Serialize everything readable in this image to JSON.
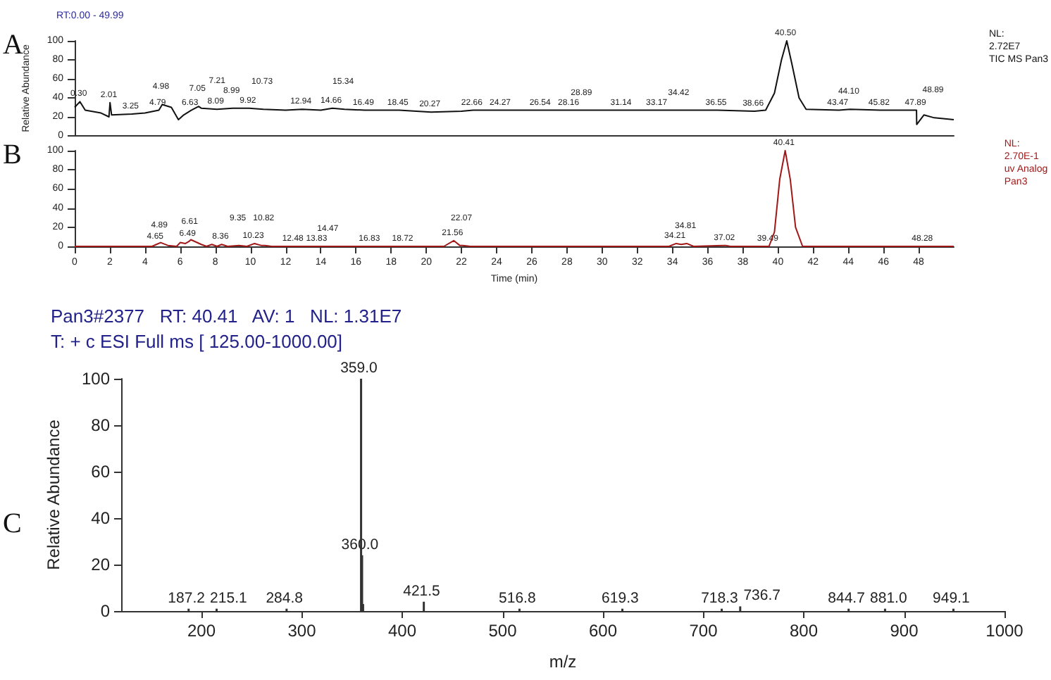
{
  "chart_data": [
    {
      "type": "line",
      "ylabel": "Relative Abundance",
      "xlim": [
        0,
        50
      ],
      "ylim": [
        0,
        100
      ],
      "yticks": [
        0,
        20,
        40,
        60,
        80,
        100
      ],
      "tick_labels": "y",
      "grid": false,
      "marker": "none",
      "line_style": "solid",
      "annotations": [
        "A",
        "RT:0.00 - 49.99",
        {
          "text": "0.30",
          "x": 0.3,
          "y": 36
        },
        {
          "text": "2.01",
          "x": 2.01,
          "y": 35
        },
        {
          "text": "3.25",
          "x": 3.25,
          "y": 23
        },
        {
          "text": "4.79",
          "x": 4.79,
          "y": 27
        },
        {
          "text": "4.98",
          "x": 4.98,
          "y": 33
        },
        {
          "text": "6.63",
          "x": 6.63,
          "y": 27
        },
        {
          "text": "7.05",
          "x": 7.05,
          "y": 31
        },
        {
          "text": "7.21",
          "x": 7.21,
          "y": 29
        },
        {
          "text": "8.09",
          "x": 8.09,
          "y": 28
        },
        {
          "text": "8.99",
          "x": 8.99,
          "y": 29
        },
        {
          "text": "9.92",
          "x": 9.92,
          "y": 29
        },
        {
          "text": "10.73",
          "x": 10.73,
          "y": 28
        },
        {
          "text": "12.94",
          "x": 12.94,
          "y": 28
        },
        {
          "text": "14.66",
          "x": 14.66,
          "y": 29
        },
        {
          "text": "15.34",
          "x": 15.34,
          "y": 28
        },
        {
          "text": "16.49",
          "x": 16.49,
          "y": 27
        },
        {
          "text": "18.45",
          "x": 18.45,
          "y": 27
        },
        {
          "text": "20.27",
          "x": 20.27,
          "y": 25
        },
        {
          "text": "22.66",
          "x": 22.66,
          "y": 27
        },
        {
          "text": "24.27",
          "x": 24.27,
          "y": 27
        },
        {
          "text": "26.54",
          "x": 26.54,
          "y": 27
        },
        {
          "text": "28.16",
          "x": 28.16,
          "y": 27
        },
        {
          "text": "28.89",
          "x": 28.89,
          "y": 27
        },
        {
          "text": "31.14",
          "x": 31.14,
          "y": 27
        },
        {
          "text": "33.17",
          "x": 33.17,
          "y": 27
        },
        {
          "text": "34.42",
          "x": 34.42,
          "y": 27
        },
        {
          "text": "36.55",
          "x": 36.55,
          "y": 27
        },
        {
          "text": "38.66",
          "x": 38.66,
          "y": 26
        },
        {
          "text": "40.50",
          "x": 40.5,
          "y": 100
        },
        {
          "text": "43.47",
          "x": 43.47,
          "y": 27
        },
        {
          "text": "44.10",
          "x": 44.1,
          "y": 28
        },
        {
          "text": "45.82",
          "x": 45.82,
          "y": 27
        },
        {
          "text": "47.89",
          "x": 47.89,
          "y": 27
        },
        {
          "text": "48.89",
          "x": 48.89,
          "y": 19
        },
        "NL:\n2.72E7\nTIC MS Pan3"
      ],
      "series": [
        {
          "color": "#111111",
          "x": [
            0,
            0.3,
            0.6,
            1.5,
            1.95,
            2.01,
            2.1,
            3.25,
            4.0,
            4.79,
            4.98,
            5.5,
            5.9,
            6.2,
            6.63,
            7.05,
            7.21,
            8.09,
            8.99,
            9.92,
            10.73,
            12.0,
            12.94,
            14.0,
            14.66,
            15.34,
            16.49,
            18.45,
            20.27,
            22.0,
            22.66,
            24.27,
            26.54,
            28.16,
            28.89,
            31.14,
            33.17,
            34.42,
            36.55,
            38.66,
            39.3,
            39.8,
            40.2,
            40.5,
            40.8,
            41.2,
            41.6,
            43.47,
            44.1,
            45.82,
            47.5,
            47.88,
            47.89,
            48.3,
            48.89,
            49.5,
            50
          ],
          "values": [
            30,
            36,
            27,
            24,
            20,
            35,
            22,
            23,
            24,
            27,
            33,
            30,
            17,
            22,
            27,
            31,
            29,
            28,
            29,
            29,
            28,
            27,
            28,
            27,
            29,
            28,
            27,
            27,
            25,
            26,
            27,
            27,
            27,
            27,
            27,
            27,
            27,
            27,
            27,
            26,
            27,
            45,
            80,
            100,
            75,
            40,
            28,
            27,
            28,
            27,
            27,
            27,
            12,
            22,
            19,
            18,
            17
          ]
        }
      ]
    },
    {
      "type": "line",
      "xlabel": "Time (min)",
      "xlim": [
        0,
        50
      ],
      "ylim": [
        0,
        100
      ],
      "xticks": [
        0,
        2,
        4,
        6,
        8,
        10,
        12,
        14,
        16,
        18,
        20,
        22,
        24,
        26,
        28,
        30,
        32,
        34,
        36,
        38,
        40,
        42,
        44,
        46,
        48
      ],
      "yticks": [
        0,
        20,
        40,
        60,
        80,
        100
      ],
      "grid": false,
      "marker": "none",
      "line_style": "solid",
      "annotations": [
        "B",
        {
          "text": "4.65",
          "x": 4.65,
          "y": 2
        },
        {
          "text": "4.89",
          "x": 4.89,
          "y": 4
        },
        {
          "text": "6.49",
          "x": 6.49,
          "y": 5
        },
        {
          "text": "6.61",
          "x": 6.61,
          "y": 7
        },
        {
          "text": "8.36",
          "x": 8.36,
          "y": 2
        },
        {
          "text": "9.35",
          "x": 9.35,
          "y": 1
        },
        {
          "text": "10.23",
          "x": 10.23,
          "y": 3
        },
        {
          "text": "10.82",
          "x": 10.82,
          "y": 1
        },
        {
          "text": "12.48",
          "x": 12.48,
          "y": 0
        },
        {
          "text": "13.83",
          "x": 13.83,
          "y": 0
        },
        {
          "text": "14.47",
          "x": 14.47,
          "y": 0
        },
        {
          "text": "16.83",
          "x": 16.83,
          "y": 0
        },
        {
          "text": "18.72",
          "x": 18.72,
          "y": 0
        },
        {
          "text": "21.56",
          "x": 21.56,
          "y": 6
        },
        {
          "text": "22.07",
          "x": 22.07,
          "y": 1
        },
        {
          "text": "34.21",
          "x": 34.21,
          "y": 3
        },
        {
          "text": "34.81",
          "x": 34.81,
          "y": 3
        },
        {
          "text": "37.02",
          "x": 37.02,
          "y": 1
        },
        {
          "text": "39.49",
          "x": 39.49,
          "y": 0
        },
        {
          "text": "40.41",
          "x": 40.41,
          "y": 100
        },
        {
          "text": "48.28",
          "x": 48.28,
          "y": 0
        },
        "NL:\n2.70E-1\nuv Analog\nPan3"
      ],
      "series": [
        {
          "color": "#a01818",
          "x": [
            0,
            4.4,
            4.65,
            4.89,
            5.3,
            5.8,
            6.0,
            6.3,
            6.49,
            6.61,
            7.2,
            7.5,
            7.8,
            8.1,
            8.36,
            8.7,
            9.35,
            9.8,
            10.23,
            10.6,
            10.82,
            11.2,
            12.48,
            13.83,
            14.47,
            16.83,
            18.72,
            21.0,
            21.56,
            21.9,
            22.07,
            22.5,
            33.8,
            34.21,
            34.5,
            34.81,
            35.2,
            37.02,
            37.3,
            39.49,
            39.8,
            40.1,
            40.41,
            40.7,
            41.0,
            41.4,
            48.28,
            50
          ],
          "values": [
            0,
            0,
            2,
            4,
            1,
            0,
            4,
            3,
            5,
            7,
            2,
            0,
            2,
            0,
            2,
            0,
            1,
            0,
            3,
            1,
            1,
            0,
            0,
            0,
            0,
            0,
            0,
            0,
            6,
            1,
            1,
            0,
            0,
            3,
            2,
            3,
            0,
            1,
            0,
            0,
            15,
            70,
            100,
            70,
            20,
            0,
            0,
            0
          ]
        }
      ]
    },
    {
      "type": "bar",
      "title": "Pan3#2377   RT: 40.41   AV: 1   NL: 1.31E7",
      "subtitle": "T: + c ESI Full ms [ 125.00-1000.00]",
      "xlabel": "m/z",
      "ylabel": "Relative Abundance",
      "xlim": [
        120,
        1000
      ],
      "ylim": [
        0,
        100
      ],
      "xticks": [
        200,
        300,
        400,
        500,
        600,
        700,
        800,
        900,
        1000
      ],
      "yticks": [
        0,
        20,
        40,
        60,
        80,
        100
      ],
      "grid": false,
      "annotations": [
        "C",
        {
          "text": "187.2",
          "x": 187.2,
          "y": 1
        },
        {
          "text": "215.1",
          "x": 215.1,
          "y": 1
        },
        {
          "text": "284.8",
          "x": 284.8,
          "y": 1
        },
        {
          "text": "359.0",
          "x": 359.0,
          "y": 100
        },
        {
          "text": "360.0",
          "x": 360.0,
          "y": 24
        },
        {
          "text": "421.5",
          "x": 421.5,
          "y": 4
        },
        {
          "text": "516.8",
          "x": 516.8,
          "y": 1
        },
        {
          "text": "619.3",
          "x": 619.3,
          "y": 1
        },
        {
          "text": "718.3",
          "x": 718.3,
          "y": 1
        },
        {
          "text": "736.7",
          "x": 736.7,
          "y": 2
        },
        {
          "text": "844.7",
          "x": 844.7,
          "y": 1
        },
        {
          "text": "881.0",
          "x": 881.0,
          "y": 1
        },
        {
          "text": "949.1",
          "x": 949.1,
          "y": 1
        }
      ],
      "series": [
        {
          "color": "#333333",
          "x": [
            187.2,
            215.1,
            284.8,
            359.0,
            360.0,
            361.0,
            421.5,
            516.8,
            619.3,
            718.3,
            736.7,
            844.7,
            881.0,
            949.1
          ],
          "values": [
            1,
            1,
            1,
            100,
            24,
            3,
            4,
            1,
            1,
            1,
            2,
            1,
            1,
            1
          ]
        }
      ]
    }
  ]
}
